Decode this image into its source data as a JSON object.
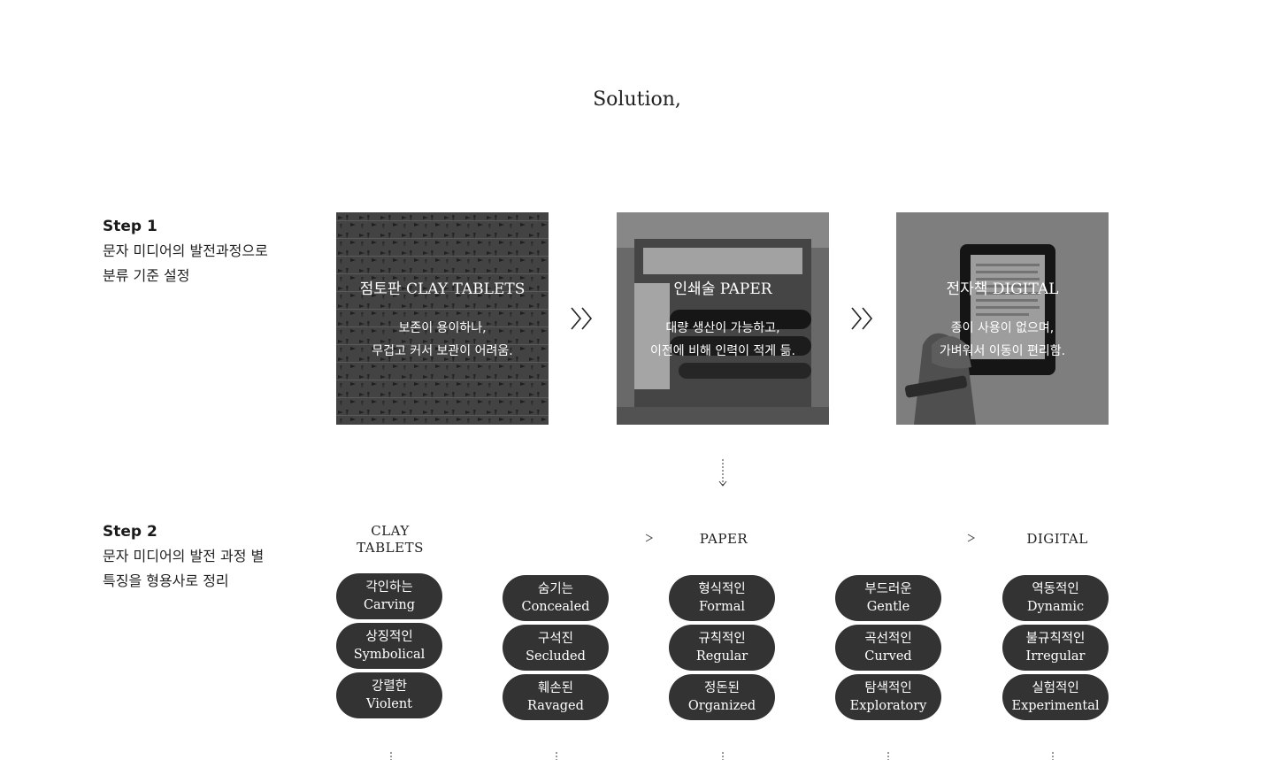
{
  "title": "Solution,",
  "step1": {
    "label": "Step 1",
    "desc": "문자 미디어의 발전과정으로\n분류 기준 설정"
  },
  "step2": {
    "label": "Step 2",
    "desc": "문자 미디어의 발전 과정 별\n특징을 형용사로 정리"
  },
  "cards": [
    {
      "title": "점토판 CLAY TABLETS",
      "desc": "보존이 용이하나,\n무겁고 커서 보관이 어려움."
    },
    {
      "title": "인쇄술 PAPER",
      "desc": "대량 생산이 가능하고,\n이전에 비해 인력이 적게 듦."
    },
    {
      "title": "전자책 DIGITAL",
      "desc": "종이 사용이 없으며,\n가벼워서 이동이 편리함."
    }
  ],
  "columns": [
    {
      "head": "CLAY\nTABLETS"
    },
    {
      "head": ""
    },
    {
      "head": "PAPER"
    },
    {
      "head": ""
    },
    {
      "head": "DIGITAL"
    }
  ],
  "pills": [
    [
      {
        "ko": "각인하는",
        "en": "Carving"
      },
      {
        "ko": "상징적인",
        "en": "Symbolical"
      },
      {
        "ko": "강렬한",
        "en": "Violent"
      }
    ],
    [
      {
        "ko": "숨기는",
        "en": "Concealed"
      },
      {
        "ko": "구석진",
        "en": "Secluded"
      },
      {
        "ko": "훼손된",
        "en": "Ravaged"
      }
    ],
    [
      {
        "ko": "형식적인",
        "en": "Formal"
      },
      {
        "ko": "규칙적인",
        "en": "Regular"
      },
      {
        "ko": "정돈된",
        "en": "Organized"
      }
    ],
    [
      {
        "ko": "부드러운",
        "en": "Gentle"
      },
      {
        "ko": "곡선적인",
        "en": "Curved"
      },
      {
        "ko": "탐색적인",
        "en": "Exploratory"
      }
    ],
    [
      {
        "ko": "역동적인",
        "en": "Dynamic"
      },
      {
        "ko": "불규칙적인",
        "en": "Irregular"
      },
      {
        "ko": "실험적인",
        "en": "Experimental"
      }
    ]
  ],
  "colors": {
    "pill_bg": "#333333",
    "text": "#1a1a1a",
    "arrow": "#555555"
  },
  "icons": {
    "chevron": "double-chevron-right-icon",
    "down": "dotted-arrow-down-icon"
  }
}
